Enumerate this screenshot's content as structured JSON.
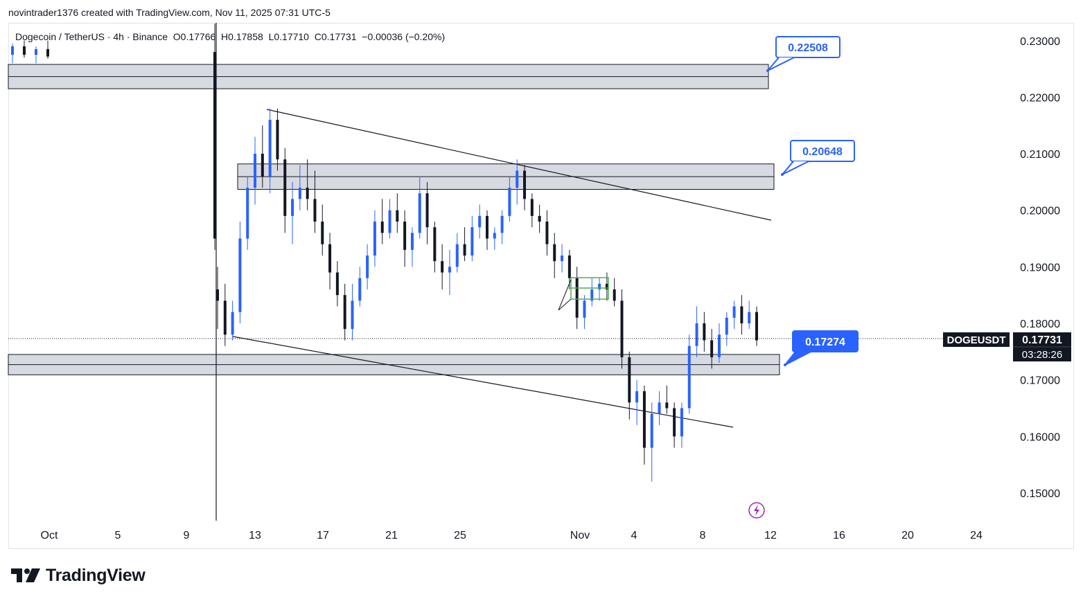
{
  "header": {
    "creator_line": "novintrader1376 created with TradingView.com, Nov 11, 2025 07:31 UTC-5"
  },
  "legend": {
    "symbol": "Dogecoin / TetherUS · 4h · Binance",
    "open_label": "O",
    "open": "0.17766",
    "high_label": "H",
    "high": "0.17858",
    "low_label": "L",
    "low": "0.17710",
    "close_label": "C",
    "close": "0.17731",
    "change": "−0.00036 (−0.20%)"
  },
  "chart_data": {
    "type": "candlestick",
    "symbol": "DOGEUSDT",
    "interval": "4h",
    "exchange": "Binance",
    "y_ticks": [
      "0.23000",
      "0.22000",
      "0.21000",
      "0.20000",
      "0.19000",
      "0.18000",
      "0.17000",
      "0.16000",
      "0.15000"
    ],
    "ylim": [
      0.1475,
      0.2345
    ],
    "x_tick_labels": [
      "Oct",
      "5",
      "9",
      "13",
      "17",
      "21",
      "25",
      "Nov",
      "4",
      "8",
      "12",
      "16",
      "20",
      "24"
    ],
    "price_labels": [
      "0.22508",
      "0.20648",
      "0.17274"
    ],
    "zones": [
      {
        "low": 0.2215,
        "high": 0.2258
      },
      {
        "low": 0.2037,
        "high": 0.2082
      },
      {
        "low": 0.1709,
        "high": 0.1745
      }
    ],
    "trendlines": [
      {
        "from": [
          "Oct 13",
          0.2179
        ],
        "to": [
          "Nov 12",
          0.1987
        ]
      },
      {
        "from": [
          "Oct 11",
          0.1777
        ],
        "to": [
          "Nov 10",
          0.1617
        ]
      }
    ],
    "current_price": "0.17731",
    "countdown": "03:28:26",
    "ohlc_series": [
      [
        0.186,
        0.19,
        0.179,
        0.184
      ],
      [
        0.184,
        0.187,
        0.176,
        0.178
      ],
      [
        0.178,
        0.184,
        0.177,
        0.182
      ],
      [
        0.182,
        0.198,
        0.18,
        0.195
      ],
      [
        0.195,
        0.206,
        0.193,
        0.204
      ],
      [
        0.204,
        0.213,
        0.201,
        0.21
      ],
      [
        0.21,
        0.215,
        0.204,
        0.206
      ],
      [
        0.206,
        0.218,
        0.203,
        0.216
      ],
      [
        0.216,
        0.218,
        0.207,
        0.209
      ],
      [
        0.209,
        0.211,
        0.196,
        0.199
      ],
      [
        0.199,
        0.205,
        0.194,
        0.202
      ],
      [
        0.202,
        0.208,
        0.2,
        0.204
      ],
      [
        0.204,
        0.209,
        0.2,
        0.202
      ],
      [
        0.202,
        0.207,
        0.196,
        0.198
      ],
      [
        0.198,
        0.201,
        0.192,
        0.194
      ],
      [
        0.194,
        0.196,
        0.186,
        0.189
      ],
      [
        0.189,
        0.191,
        0.183,
        0.185
      ],
      [
        0.185,
        0.187,
        0.177,
        0.179
      ],
      [
        0.179,
        0.187,
        0.177,
        0.184
      ],
      [
        0.184,
        0.19,
        0.183,
        0.188
      ],
      [
        0.188,
        0.194,
        0.186,
        0.192
      ],
      [
        0.192,
        0.2,
        0.19,
        0.198
      ],
      [
        0.198,
        0.202,
        0.194,
        0.196
      ],
      [
        0.196,
        0.202,
        0.195,
        0.2
      ],
      [
        0.2,
        0.203,
        0.196,
        0.198
      ],
      [
        0.198,
        0.2,
        0.19,
        0.193
      ],
      [
        0.193,
        0.197,
        0.19,
        0.196
      ],
      [
        0.196,
        0.206,
        0.195,
        0.203
      ],
      [
        0.203,
        0.205,
        0.194,
        0.197
      ],
      [
        0.197,
        0.198,
        0.189,
        0.191
      ],
      [
        0.191,
        0.194,
        0.186,
        0.189
      ],
      [
        0.189,
        0.193,
        0.185,
        0.19
      ],
      [
        0.19,
        0.196,
        0.189,
        0.194
      ],
      [
        0.194,
        0.197,
        0.191,
        0.192
      ],
      [
        0.192,
        0.199,
        0.191,
        0.197
      ],
      [
        0.197,
        0.201,
        0.195,
        0.199
      ],
      [
        0.199,
        0.2,
        0.193,
        0.195
      ],
      [
        0.195,
        0.197,
        0.193,
        0.196
      ],
      [
        0.196,
        0.2,
        0.194,
        0.199
      ],
      [
        0.199,
        0.206,
        0.198,
        0.204
      ],
      [
        0.204,
        0.209,
        0.201,
        0.207
      ],
      [
        0.207,
        0.208,
        0.2,
        0.202
      ],
      [
        0.202,
        0.203,
        0.197,
        0.199
      ],
      [
        0.199,
        0.201,
        0.196,
        0.198
      ],
      [
        0.198,
        0.2,
        0.192,
        0.194
      ],
      [
        0.194,
        0.196,
        0.188,
        0.191
      ],
      [
        0.191,
        0.194,
        0.189,
        0.192
      ],
      [
        0.192,
        0.193,
        0.186,
        0.188
      ],
      [
        0.188,
        0.19,
        0.179,
        0.181
      ],
      [
        0.181,
        0.185,
        0.179,
        0.184
      ],
      [
        0.184,
        0.188,
        0.183,
        0.186
      ],
      [
        0.186,
        0.188,
        0.184,
        0.187
      ],
      [
        0.187,
        0.189,
        0.184,
        0.186
      ],
      [
        0.186,
        0.188,
        0.183,
        0.184
      ],
      [
        0.184,
        0.186,
        0.172,
        0.174
      ],
      [
        0.174,
        0.175,
        0.163,
        0.166
      ],
      [
        0.166,
        0.17,
        0.162,
        0.168
      ],
      [
        0.168,
        0.169,
        0.155,
        0.158
      ],
      [
        0.158,
        0.166,
        0.152,
        0.164
      ],
      [
        0.164,
        0.168,
        0.162,
        0.166
      ],
      [
        0.166,
        0.169,
        0.164,
        0.165
      ],
      [
        0.165,
        0.166,
        0.158,
        0.16
      ],
      [
        0.16,
        0.166,
        0.158,
        0.165
      ],
      [
        0.165,
        0.178,
        0.164,
        0.176
      ],
      [
        0.176,
        0.183,
        0.174,
        0.18
      ],
      [
        0.18,
        0.182,
        0.175,
        0.177
      ],
      [
        0.177,
        0.179,
        0.172,
        0.174
      ],
      [
        0.174,
        0.18,
        0.173,
        0.178
      ],
      [
        0.178,
        0.182,
        0.176,
        0.181
      ],
      [
        0.181,
        0.184,
        0.179,
        0.183
      ],
      [
        0.183,
        0.185,
        0.178,
        0.18
      ],
      [
        0.18,
        0.184,
        0.179,
        0.182
      ],
      [
        0.182,
        0.183,
        0.176,
        0.177
      ]
    ]
  },
  "footer": {
    "brand": "TradingView"
  }
}
